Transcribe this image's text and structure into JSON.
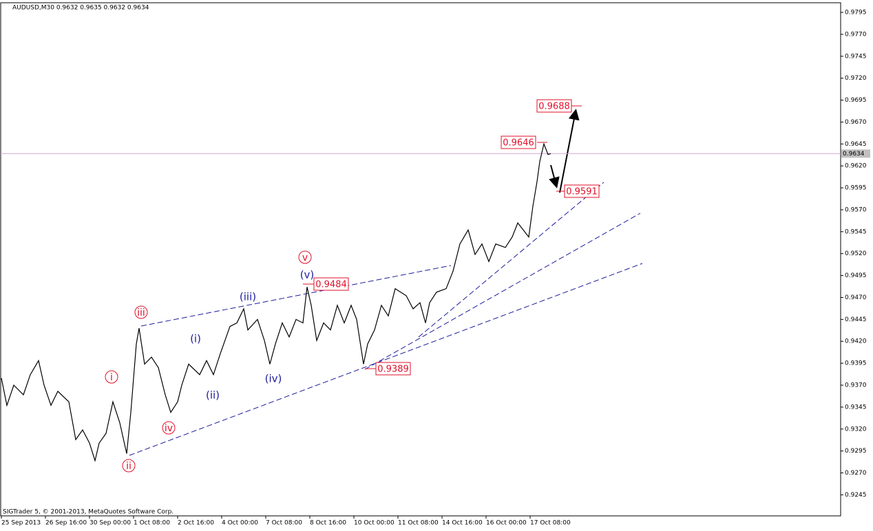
{
  "chart_data": {
    "type": "line",
    "title": "AUDUSD,M30  0.9632 0.9635 0.9632 0.9634",
    "footer": "SIGTrader 5, © 2001-2013, MetaQuotes Software Corp.",
    "color": "#000000",
    "x": [
      0,
      4,
      9,
      16,
      21,
      27,
      31,
      36,
      41,
      49,
      54,
      59,
      64,
      68,
      71,
      76,
      81,
      86,
      91,
      94,
      98,
      100,
      104,
      109,
      114,
      119,
      123,
      128,
      131,
      136,
      144,
      149,
      154,
      159,
      166,
      171,
      176,
      179,
      186,
      191,
      195,
      199,
      204,
      209,
      214,
      219,
      222,
      225,
      229,
      234,
      239,
      244,
      249,
      254,
      258,
      263,
      266,
      271,
      276,
      281,
      286,
      294,
      299,
      304,
      308,
      311,
      316,
      323,
      328,
      333,
      339,
      344,
      349,
      354,
      359,
      366,
      371,
      375,
      379,
      383,
      386,
      389,
      391,
      394,
      397,
      399
    ],
    "values": [
      0.9378,
      0.9347,
      0.937,
      0.9359,
      0.9382,
      0.9398,
      0.937,
      0.9347,
      0.9363,
      0.9351,
      0.9308,
      0.9319,
      0.9304,
      0.9284,
      0.9304,
      0.9315,
      0.9351,
      0.9327,
      0.9292,
      0.9339,
      0.9417,
      0.9435,
      0.9394,
      0.9402,
      0.939,
      0.9359,
      0.9339,
      0.9351,
      0.937,
      0.9394,
      0.9382,
      0.9398,
      0.9382,
      0.9406,
      0.9437,
      0.9441,
      0.9457,
      0.9433,
      0.9445,
      0.9421,
      0.9394,
      0.9417,
      0.9441,
      0.9425,
      0.9445,
      0.9441,
      0.9482,
      0.9461,
      0.9421,
      0.9441,
      0.9433,
      0.9461,
      0.9441,
      0.9461,
      0.9445,
      0.9394,
      0.9417,
      0.9433,
      0.9461,
      0.9449,
      0.948,
      0.9472,
      0.9457,
      0.9464,
      0.9441,
      0.9464,
      0.9476,
      0.948,
      0.95,
      0.9531,
      0.9547,
      0.9519,
      0.9531,
      0.9511,
      0.9531,
      0.9527,
      0.9539,
      0.9555,
      0.9547,
      0.9539,
      0.9574,
      0.9602,
      0.9625,
      0.9645,
      0.9633,
      0.9634
    ],
    "xlim": [
      -0.5,
      609.5
    ],
    "xticks": [
      {
        "value": 0,
        "label": "25 Sep 2013"
      },
      {
        "value": 32,
        "label": "26 Sep 16:00"
      },
      {
        "value": 64,
        "label": "30 Sep 00:00"
      },
      {
        "value": 96,
        "label": "1 Oct 08:00"
      },
      {
        "value": 128,
        "label": "2 Oct 16:00"
      },
      {
        "value": 160,
        "label": "4 Oct 00:00"
      },
      {
        "value": 192,
        "label": "7 Oct 08:00"
      },
      {
        "value": 224,
        "label": "8 Oct 16:00"
      },
      {
        "value": 256,
        "label": "10 Oct 00:00"
      },
      {
        "value": 288,
        "label": "11 Oct 08:00"
      },
      {
        "value": 320,
        "label": "14 Oct 16:00"
      },
      {
        "value": 352,
        "label": "16 Oct 00:00"
      },
      {
        "value": 384,
        "label": "17 Oct 08:00"
      }
    ],
    "ylim": [
      0.9221,
      0.9806
    ],
    "yticks": [
      0.9795,
      {
        "value": 0.977,
        "label": "0.9770"
      },
      0.9745,
      {
        "value": 0.972,
        "label": "0.9720"
      },
      0.9695,
      {
        "value": 0.967,
        "label": "0.9670"
      },
      0.9645,
      {
        "value": 0.962,
        "label": "0.9620"
      },
      0.9595,
      {
        "value": 0.957,
        "label": "0.9570"
      },
      0.9545,
      {
        "value": 0.952,
        "label": "0.9520"
      },
      0.9495,
      {
        "value": 0.947,
        "label": "0.9470"
      },
      0.9445,
      {
        "value": 0.942,
        "label": "0.9420"
      },
      0.9395,
      {
        "value": 0.937,
        "label": "0.9370"
      },
      0.9345,
      {
        "value": 0.932,
        "label": "0.9320"
      },
      0.9295,
      {
        "value": 0.927,
        "label": "0.9270"
      },
      0.9245
    ],
    "current_price": 0.9634,
    "wave_labels": [
      "i",
      "ii",
      "iii",
      "iv",
      "v",
      "(i)",
      "(ii)",
      "(iii)",
      "(iv)",
      "(v)"
    ],
    "price_labels": [
      "0.9688",
      "0.9646",
      "0.9591",
      "0.9484",
      "0.9389"
    ]
  }
}
